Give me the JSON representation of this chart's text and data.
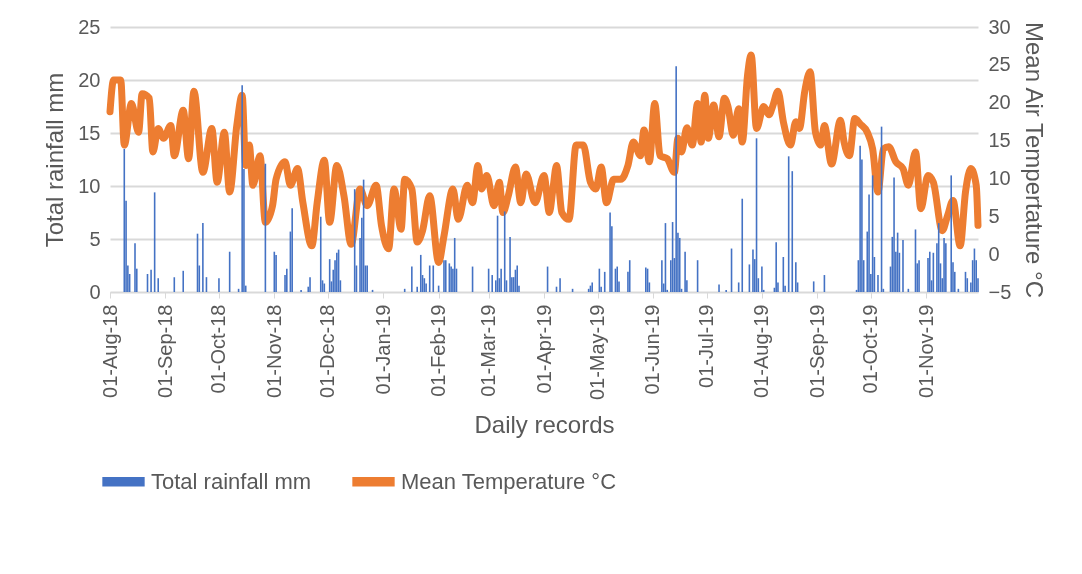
{
  "chart_data": {
    "type": "bar",
    "xlabel": "Daily records",
    "ylabel": "Total rainfall mm",
    "y2label": "Mean  Air Tempertature °C",
    "xlim": [
      "2018-08-01",
      "2019-11-30"
    ],
    "xticks": [
      {
        "value": "2018-08-01",
        "label": "01-Aug-18"
      },
      {
        "value": "2018-09-01",
        "label": "01-Sep-18"
      },
      {
        "value": "2018-10-01",
        "label": "01-Oct-18"
      },
      {
        "value": "2018-11-01",
        "label": "01-Nov-18"
      },
      {
        "value": "2018-12-01",
        "label": "01-Dec-18"
      },
      {
        "value": "2019-01-01",
        "label": "01-Jan-19"
      },
      {
        "value": "2019-02-01",
        "label": "01-Feb-19"
      },
      {
        "value": "2019-03-01",
        "label": "01-Mar-19"
      },
      {
        "value": "2019-04-01",
        "label": "01-Apr-19"
      },
      {
        "value": "2019-05-01",
        "label": "01-May-19"
      },
      {
        "value": "2019-06-01",
        "label": "01-Jun-19"
      },
      {
        "value": "2019-07-01",
        "label": "01-Jul-19"
      },
      {
        "value": "2019-08-01",
        "label": "01-Aug-19"
      },
      {
        "value": "2019-09-01",
        "label": "01-Sep-19"
      },
      {
        "value": "2019-10-01",
        "label": "01-Oct-19"
      },
      {
        "value": "2019-11-01",
        "label": "01-Nov-19"
      }
    ],
    "ylim": [
      0,
      25
    ],
    "yticks": [
      0,
      5,
      10,
      15,
      20,
      25
    ],
    "y2lim": [
      -5,
      30
    ],
    "y2ticks": [
      -5,
      0,
      5,
      10,
      15,
      20,
      25,
      30
    ],
    "grid": "y",
    "legend": "bottom",
    "series": [
      {
        "name": "Total rainfall mm",
        "color": "#4472c4",
        "x": [
          "2018-08-09",
          "2018-08-10",
          "2018-08-11",
          "2018-08-12",
          "2018-08-15",
          "2018-08-16",
          "2018-08-22",
          "2018-08-24",
          "2018-08-26",
          "2018-08-28",
          "2018-09-06",
          "2018-09-11",
          "2018-09-19",
          "2018-09-20",
          "2018-09-22",
          "2018-09-24",
          "2018-10-01",
          "2018-10-07",
          "2018-10-12",
          "2018-10-14",
          "2018-10-15",
          "2018-10-16",
          "2018-10-27",
          "2018-11-01",
          "2018-11-02",
          "2018-11-07",
          "2018-11-08",
          "2018-11-10",
          "2018-11-11",
          "2018-11-16",
          "2018-11-20",
          "2018-11-21",
          "2018-11-27",
          "2018-11-28",
          "2018-11-29",
          "2018-12-02",
          "2018-12-03",
          "2018-12-04",
          "2018-12-05",
          "2018-12-06",
          "2018-12-07",
          "2018-12-08",
          "2018-12-16",
          "2018-12-17",
          "2018-12-19",
          "2018-12-20",
          "2018-12-21",
          "2018-12-22",
          "2018-12-23",
          "2018-12-26",
          "2019-01-13",
          "2019-01-17",
          "2019-01-20",
          "2019-01-22",
          "2019-01-23",
          "2019-01-24",
          "2019-01-25",
          "2019-01-27",
          "2019-01-29",
          "2019-02-01",
          "2019-02-04",
          "2019-02-05",
          "2019-02-07",
          "2019-02-08",
          "2019-02-09",
          "2019-02-10",
          "2019-02-11",
          "2019-02-20",
          "2019-03-01",
          "2019-03-03",
          "2019-03-05",
          "2019-03-06",
          "2019-03-07",
          "2019-03-08",
          "2019-03-10",
          "2019-03-11",
          "2019-03-13",
          "2019-03-14",
          "2019-03-15",
          "2019-03-16",
          "2019-03-17",
          "2019-03-18",
          "2019-04-03",
          "2019-04-08",
          "2019-04-10",
          "2019-04-17",
          "2019-04-26",
          "2019-04-27",
          "2019-04-28",
          "2019-05-02",
          "2019-05-03",
          "2019-05-05",
          "2019-05-08",
          "2019-05-09",
          "2019-05-11",
          "2019-05-12",
          "2019-05-13",
          "2019-05-18",
          "2019-05-19",
          "2019-05-28",
          "2019-05-29",
          "2019-05-30",
          "2019-06-06",
          "2019-06-07",
          "2019-06-08",
          "2019-06-09",
          "2019-06-11",
          "2019-06-12",
          "2019-06-13",
          "2019-06-14",
          "2019-06-15",
          "2019-06-16",
          "2019-06-17",
          "2019-06-19",
          "2019-06-20",
          "2019-06-26",
          "2019-07-08",
          "2019-07-12",
          "2019-07-15",
          "2019-07-19",
          "2019-07-21",
          "2019-07-25",
          "2019-07-27",
          "2019-07-28",
          "2019-07-29",
          "2019-07-30",
          "2019-08-01",
          "2019-08-02",
          "2019-08-08",
          "2019-08-09",
          "2019-08-10",
          "2019-08-13",
          "2019-08-14",
          "2019-08-16",
          "2019-08-18",
          "2019-08-20",
          "2019-08-21",
          "2019-08-30",
          "2019-09-05",
          "2019-09-23",
          "2019-09-24",
          "2019-09-25",
          "2019-09-26",
          "2019-09-27",
          "2019-09-29",
          "2019-09-30",
          "2019-10-01",
          "2019-10-02",
          "2019-10-03",
          "2019-10-05",
          "2019-10-07",
          "2019-10-08",
          "2019-10-12",
          "2019-10-13",
          "2019-10-14",
          "2019-10-15",
          "2019-10-16",
          "2019-10-17",
          "2019-10-19",
          "2019-10-22",
          "2019-10-26",
          "2019-10-27",
          "2019-10-28",
          "2019-11-02",
          "2019-11-03",
          "2019-11-04",
          "2019-11-05",
          "2019-11-07",
          "2019-11-08",
          "2019-11-09",
          "2019-11-10",
          "2019-11-11",
          "2019-11-12",
          "2019-11-15",
          "2019-11-16",
          "2019-11-17",
          "2019-11-19",
          "2019-11-23",
          "2019-11-24",
          "2019-11-26",
          "2019-11-27",
          "2019-11-28",
          "2019-11-29",
          "2019-11-30"
        ],
        "values": [
          13.5,
          8.6,
          2.5,
          1.7,
          4.6,
          2.2,
          1.7,
          2.1,
          9.4,
          1.3,
          1.4,
          2.0,
          5.5,
          2.5,
          6.5,
          1.4,
          1.3,
          3.8,
          0.3,
          19.5,
          11.6,
          0.6,
          12.1,
          3.8,
          3.5,
          1.6,
          2.2,
          5.7,
          7.9,
          0.2,
          0.5,
          1.4,
          7.1,
          1.1,
          0.8,
          3.1,
          1.0,
          2.1,
          3.0,
          3.7,
          4.0,
          1.1,
          9.7,
          2.5,
          5.1,
          7.0,
          10.6,
          2.5,
          2.5,
          0.2,
          0.3,
          2.4,
          0.5,
          3.5,
          1.6,
          1.3,
          0.8,
          2.5,
          2.5,
          0.6,
          3.0,
          3.0,
          2.7,
          2.4,
          2.2,
          5.1,
          2.2,
          2.4,
          2.2,
          1.6,
          1.1,
          7.2,
          1.3,
          2.2,
          7.6,
          1.1,
          5.2,
          1.4,
          1.4,
          2.1,
          2.5,
          0.6,
          2.4,
          0.5,
          1.3,
          0.3,
          0.3,
          0.6,
          0.9,
          2.2,
          0.5,
          1.9,
          7.5,
          6.2,
          2.2,
          2.4,
          1.0,
          1.9,
          3.0,
          2.3,
          2.2,
          0.9,
          3.0,
          0.8,
          6.5,
          0.2,
          3.0,
          6.6,
          3.2,
          21.3,
          5.6,
          5.1,
          0.3,
          3.8,
          1.1,
          3.0,
          0.7,
          0.2,
          4.1,
          0.9,
          8.8,
          2.6,
          4.0,
          3.1,
          14.5,
          1.3,
          2.4,
          0.2,
          0.4,
          4.7,
          0.9,
          3.3,
          0.6,
          12.8,
          11.4,
          2.8,
          0.9,
          1.0,
          1.6,
          0.2,
          3.0,
          13.8,
          12.5,
          3.0,
          5.7,
          9.2,
          1.7,
          11.0,
          3.3,
          1.6,
          15.6,
          0.3,
          2.4,
          5.2,
          10.8,
          3.8,
          5.6,
          3.7,
          4.9,
          0.3,
          5.9,
          2.7,
          3.0,
          3.2,
          3.8,
          1.1,
          3.7,
          4.6,
          6.5,
          2.7,
          1.3,
          5.1,
          4.6,
          11.0,
          2.8,
          1.9,
          0.3,
          1.9,
          1.3,
          0.9,
          3.0,
          4.1,
          3.0,
          1.3
        ]
      },
      {
        "name": "Mean Temperature °C",
        "type": "line",
        "axis": "y2",
        "color": "#ed7d31",
        "x": [
          "2018-08-01",
          "2018-08-03",
          "2018-08-07",
          "2018-08-09",
          "2018-08-13",
          "2018-08-17",
          "2018-08-19",
          "2018-08-23",
          "2018-08-25",
          "2018-08-28",
          "2018-08-31",
          "2018-09-04",
          "2018-09-06",
          "2018-09-11",
          "2018-09-14",
          "2018-09-17",
          "2018-09-22",
          "2018-09-27",
          "2018-09-30",
          "2018-10-04",
          "2018-10-07",
          "2018-10-11",
          "2018-10-14",
          "2018-10-16",
          "2018-10-18",
          "2018-10-20",
          "2018-10-24",
          "2018-10-27",
          "2018-10-31",
          "2018-11-02",
          "2018-11-07",
          "2018-11-10",
          "2018-11-14",
          "2018-11-17",
          "2018-11-22",
          "2018-11-25",
          "2018-11-29",
          "2018-12-02",
          "2018-12-06",
          "2018-12-10",
          "2018-12-14",
          "2018-12-19",
          "2018-12-23",
          "2018-12-28",
          "2018-12-31",
          "2019-01-04",
          "2019-01-07",
          "2019-01-11",
          "2019-01-13",
          "2019-01-17",
          "2019-01-20",
          "2019-01-23",
          "2019-01-27",
          "2019-02-01",
          "2019-02-04",
          "2019-02-09",
          "2019-02-12",
          "2019-02-17",
          "2019-02-20",
          "2019-02-23",
          "2019-02-25",
          "2019-02-28",
          "2019-03-04",
          "2019-03-07",
          "2019-03-09",
          "2019-03-12",
          "2019-03-16",
          "2019-03-19",
          "2019-03-22",
          "2019-03-27",
          "2019-04-01",
          "2019-04-04",
          "2019-04-06",
          "2019-04-08",
          "2019-04-11",
          "2019-04-15",
          "2019-04-19",
          "2019-04-23",
          "2019-04-27",
          "2019-04-30",
          "2019-05-03",
          "2019-05-06",
          "2019-05-10",
          "2019-05-14",
          "2019-05-18",
          "2019-05-21",
          "2019-05-25",
          "2019-05-27",
          "2019-05-30",
          "2019-06-02",
          "2019-06-05",
          "2019-06-09",
          "2019-06-13",
          "2019-06-15",
          "2019-06-17",
          "2019-06-20",
          "2019-06-23",
          "2019-06-26",
          "2019-06-28",
          "2019-06-30",
          "2019-07-02",
          "2019-07-05",
          "2019-07-08",
          "2019-07-11",
          "2019-07-13",
          "2019-07-16",
          "2019-07-19",
          "2019-07-21",
          "2019-07-24",
          "2019-07-26",
          "2019-07-29",
          "2019-08-02",
          "2019-08-05",
          "2019-08-07",
          "2019-08-10",
          "2019-08-13",
          "2019-08-17",
          "2019-08-20",
          "2019-08-22",
          "2019-08-25",
          "2019-08-28",
          "2019-08-31",
          "2019-09-03",
          "2019-09-05",
          "2019-09-09",
          "2019-09-14",
          "2019-09-16",
          "2019-09-19",
          "2019-09-22",
          "2019-09-25",
          "2019-09-29",
          "2019-10-02",
          "2019-10-05",
          "2019-10-08",
          "2019-10-11",
          "2019-10-15",
          "2019-10-19",
          "2019-10-22",
          "2019-10-26",
          "2019-10-29",
          "2019-11-02",
          "2019-11-05",
          "2019-11-10",
          "2019-11-13",
          "2019-11-16",
          "2019-11-20",
          "2019-11-23",
          "2019-11-26",
          "2019-11-29",
          "2019-11-30"
        ],
        "values": [
          18.8,
          23.0,
          23.0,
          14.4,
          19.9,
          16.1,
          21.2,
          20.6,
          13.5,
          16.6,
          15.3,
          17.0,
          13.0,
          19.0,
          12.6,
          21.5,
          10.8,
          16.6,
          9.5,
          16.1,
          8.2,
          17.0,
          21.0,
          11.7,
          14.4,
          9.1,
          13.0,
          4.2,
          6.4,
          9.9,
          12.2,
          9.1,
          11.3,
          6.8,
          1.1,
          6.8,
          12.4,
          4.2,
          11.7,
          7.7,
          1.3,
          8.6,
          6.4,
          9.1,
          3.8,
          0.7,
          8.6,
          3.3,
          9.9,
          8.6,
          1.6,
          3.1,
          7.7,
          -1.1,
          2.4,
          8.6,
          4.6,
          9.1,
          6.8,
          11.7,
          8.6,
          10.4,
          6.4,
          9.5,
          5.5,
          7.7,
          11.5,
          6.8,
          10.6,
          6.8,
          10.4,
          5.5,
          8.6,
          11.7,
          5.5,
          4.6,
          14.4,
          14.4,
          9.5,
          8.6,
          11.5,
          6.8,
          9.9,
          9.9,
          11.7,
          14.8,
          13.0,
          16.4,
          12.2,
          19.9,
          13.0,
          12.6,
          10.8,
          15.3,
          13.5,
          16.7,
          14.4,
          19.9,
          14.8,
          21.0,
          15.3,
          19.7,
          15.5,
          20.6,
          19.5,
          15.7,
          19.2,
          14.8,
          23.7,
          26.3,
          16.6,
          19.5,
          18.4,
          19.5,
          21.5,
          17.5,
          14.4,
          17.5,
          16.6,
          21.5,
          24.1,
          16.1,
          14.4,
          17.0,
          11.9,
          17.7,
          14.8,
          13.0,
          17.9,
          17.2,
          16.1,
          13.9,
          8.2,
          13.9,
          14.2,
          12.2,
          11.3,
          9.1,
          13.5,
          6.0,
          10.4,
          9.5,
          3.1,
          5.1,
          7.1,
          1.1,
          8.2,
          11.3,
          9.1,
          3.8
        ]
      }
    ]
  }
}
